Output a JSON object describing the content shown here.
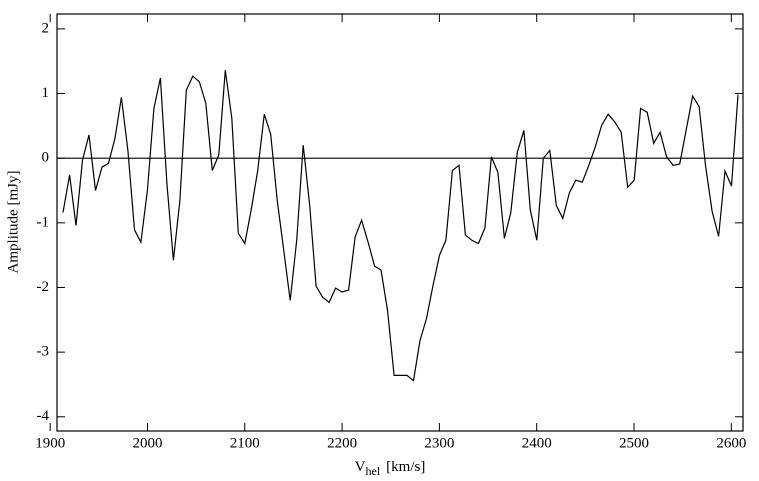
{
  "chart_data": {
    "type": "line",
    "xlabel": {
      "main": "V",
      "sub": "hel",
      "unit": "[km/s]"
    },
    "ylabel": "Amplitude [mJy]",
    "x": [
      1913.2,
      1919.9,
      1926.5,
      1933.2,
      1939.9,
      1946.6,
      1953.2,
      1959.9,
      1966.6,
      1973.2,
      1979.9,
      1986.6,
      1993.2,
      1999.9,
      2006.6,
      2013.3,
      2019.9,
      2026.6,
      2033.3,
      2039.9,
      2046.6,
      2053.3,
      2059.9,
      2066.6,
      2073.3,
      2080.0,
      2086.6,
      2093.3,
      2100.0,
      2106.6,
      2113.3,
      2120.0,
      2126.6,
      2133.3,
      2140.0,
      2146.7,
      2153.3,
      2160.0,
      2166.7,
      2173.3,
      2180.0,
      2186.7,
      2193.3,
      2200.0,
      2206.7,
      2213.4,
      2220.0,
      2226.7,
      2233.4,
      2240.0,
      2246.7,
      2253.4,
      2260.0,
      2266.7,
      2273.4,
      2280.1,
      2286.7,
      2293.4,
      2300.1,
      2306.7,
      2313.4,
      2320.1,
      2326.7,
      2333.4,
      2340.1,
      2346.8,
      2353.4,
      2360.1,
      2366.8,
      2373.4,
      2380.1,
      2386.8,
      2393.4,
      2400.1,
      2406.8,
      2413.5,
      2420.1,
      2426.8,
      2433.5,
      2440.1,
      2446.8,
      2453.5,
      2460.1,
      2466.8,
      2473.5,
      2480.2,
      2486.8,
      2493.5,
      2500.2,
      2506.8,
      2513.5,
      2520.2,
      2526.8,
      2533.5,
      2540.2,
      2546.9,
      2553.5,
      2560.2,
      2566.9,
      2573.5,
      2580.2,
      2586.9,
      2593.5,
      2600.2,
      2606.9
    ],
    "series": [
      {
        "color": "#000000",
        "values": [
          -0.84,
          -0.26,
          -1.04,
          -0.03,
          0.36,
          -0.5,
          -0.14,
          -0.08,
          0.31,
          0.94,
          0.12,
          -1.11,
          -1.3,
          -0.5,
          0.77,
          1.24,
          -0.39,
          -1.58,
          -0.65,
          1.05,
          1.27,
          1.18,
          0.85,
          -0.19,
          0.05,
          1.36,
          0.62,
          -1.16,
          -1.32,
          -0.8,
          -0.19,
          0.68,
          0.37,
          -0.65,
          -1.42,
          -2.2,
          -1.27,
          0.2,
          -0.73,
          -1.98,
          -2.15,
          -2.23,
          -2.01,
          -2.07,
          -2.04,
          -1.22,
          -0.96,
          -1.3,
          -1.67,
          -1.73,
          -2.35,
          -3.36,
          -3.36,
          -3.36,
          -3.44,
          -2.82,
          -2.48,
          -1.97,
          -1.5,
          -1.27,
          -0.19,
          -0.11,
          -1.19,
          -1.27,
          -1.32,
          -1.08,
          0.02,
          -0.22,
          -1.24,
          -0.84,
          0.09,
          0.43,
          -0.8,
          -1.27,
          0,
          0.12,
          -0.73,
          -0.93,
          -0.54,
          -0.34,
          -0.37,
          -0.11,
          0.17,
          0.51,
          0.68,
          0.56,
          0.4,
          -0.45,
          -0.34,
          0.77,
          0.71,
          0.23,
          0.4,
          0.02,
          -0.11,
          -0.09,
          0.43,
          0.96,
          0.8,
          -0.11,
          -0.82,
          -1.21,
          -0.2,
          -0.43,
          0.98
        ]
      }
    ],
    "reference_line": 0,
    "xlim": [
      1907,
      2612
    ],
    "ylim": [
      -4.22,
      2.23
    ],
    "xticks": [
      1900,
      2000,
      2100,
      2200,
      2300,
      2400,
      2500,
      2600
    ],
    "yticks": [
      -4,
      -3,
      -2,
      -1,
      0,
      1,
      2
    ]
  }
}
